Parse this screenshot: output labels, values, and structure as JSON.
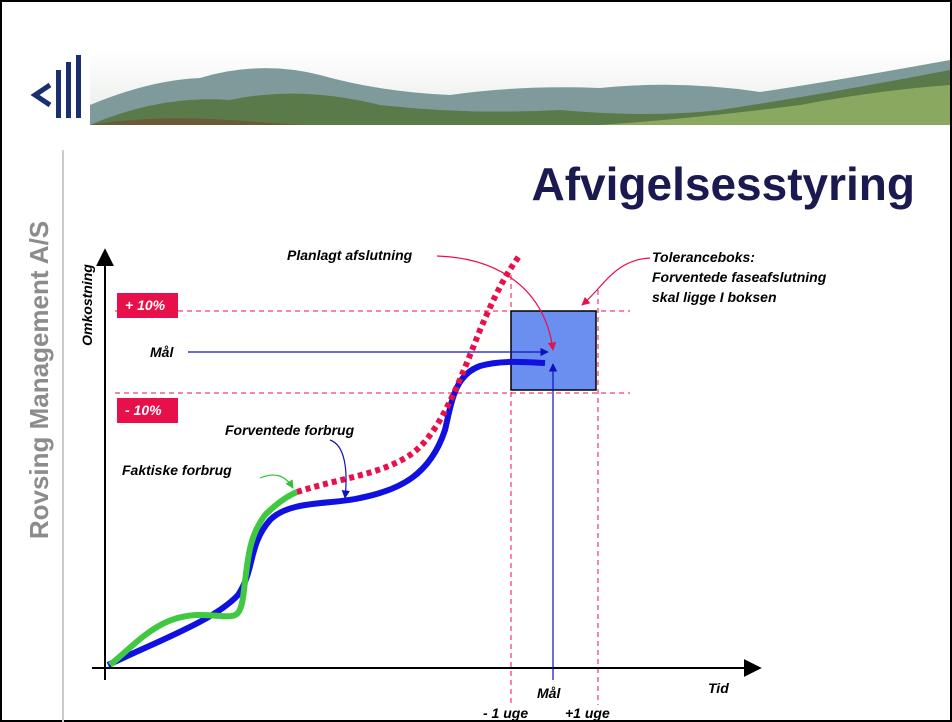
{
  "company": "Rovsing Management A/S",
  "title": "Afvigelsesstyring",
  "axes": {
    "y_label": "Omkostning",
    "x_label": "Tid"
  },
  "bands": {
    "upper": "+ 10%",
    "lower": "- 10%"
  },
  "annotations": {
    "planned": "Planlagt afslutning",
    "tolerance": [
      "Toleranceboks:",
      "Forventede faseafslutning",
      "skal ligge I boksen"
    ],
    "goal": "Mål",
    "expected": "Forventede forbrug",
    "actual": "Faktiske forbrug"
  },
  "time_labels": {
    "goal": "Mål",
    "minus": "- 1 uge",
    "plus": "+1 uge"
  }
}
